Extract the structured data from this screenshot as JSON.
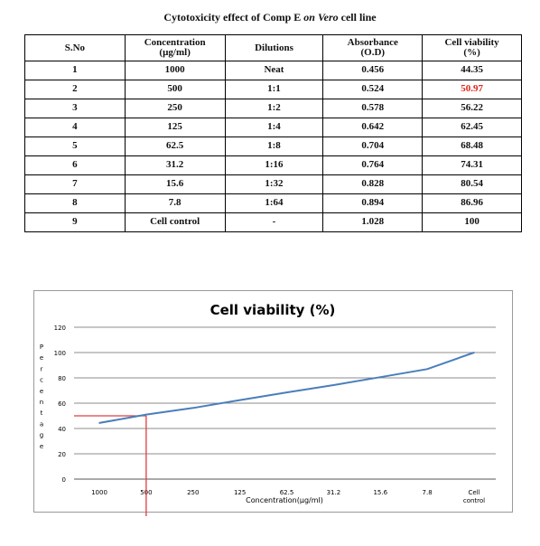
{
  "table": {
    "caption_part1": "Cytotoxicity effect of Comp E ",
    "caption_italic": "on Vero",
    "caption_part2": " cell line",
    "headers": {
      "sno": "S.No",
      "concentration": [
        "Concentration",
        "(µg/ml)"
      ],
      "dilutions": "Dilutions",
      "absorbance": [
        "Absorbance",
        "(O.D)"
      ],
      "viability": [
        "Cell viability",
        "(%)"
      ]
    },
    "rows": [
      {
        "sno": "1",
        "conc": "1000",
        "dil": "Neat",
        "abs": "0.456",
        "via": "44.35"
      },
      {
        "sno": "2",
        "conc": "500",
        "dil": "1:1",
        "abs": "0.524",
        "via": "50.97"
      },
      {
        "sno": "3",
        "conc": "250",
        "dil": "1:2",
        "abs": "0.578",
        "via": "56.22"
      },
      {
        "sno": "4",
        "conc": "125",
        "dil": "1:4",
        "abs": "0.642",
        "via": "62.45"
      },
      {
        "sno": "5",
        "conc": "62.5",
        "dil": "1:8",
        "abs": "0.704",
        "via": "68.48"
      },
      {
        "sno": "6",
        "conc": "31.2",
        "dil": "1:16",
        "abs": "0.764",
        "via": "74.31"
      },
      {
        "sno": "7",
        "conc": "15.6",
        "dil": "1:32",
        "abs": "0.828",
        "via": "80.54"
      },
      {
        "sno": "8",
        "conc": "7.8",
        "dil": "1:64",
        "abs": "0.894",
        "via": "86.96"
      },
      {
        "sno": "9",
        "conc": "Cell control",
        "dil": "-",
        "abs": "1.028",
        "via": "100"
      }
    ],
    "highlight_color": "#e2231a"
  },
  "chart_data": {
    "type": "line",
    "title": "Cell viability (%)",
    "xlabel": "Concentration(µg/ml)",
    "ylabel": "Percentage",
    "categories": [
      "1000",
      "500",
      "250",
      "125",
      "62.5",
      "31.2",
      "15.6",
      "7.8",
      "Cell control"
    ],
    "values": [
      44.35,
      50.97,
      56.22,
      62.45,
      68.48,
      74.31,
      80.54,
      86.96,
      100
    ],
    "ylim": [
      0,
      120
    ],
    "yticks": [
      0,
      20,
      40,
      60,
      80,
      100,
      120
    ],
    "grid": true,
    "line_color": "#4a7ebb",
    "marker_line": {
      "category": "500",
      "value": 50,
      "color": "#e23c3c"
    }
  }
}
